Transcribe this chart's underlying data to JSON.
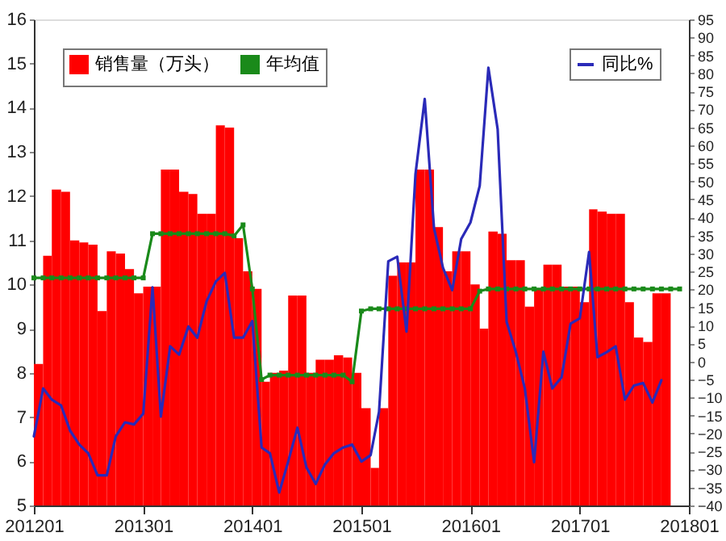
{
  "chart_data": {
    "type": "bar",
    "x": [
      "2012-01",
      "2012-02",
      "2012-03",
      "2012-04",
      "2012-05",
      "2012-06",
      "2012-07",
      "2012-08",
      "2012-09",
      "2012-10",
      "2012-11",
      "2012-12",
      "2013-01",
      "2013-02",
      "2013-03",
      "2013-04",
      "2013-05",
      "2013-06",
      "2013-07",
      "2013-08",
      "2013-09",
      "2013-10",
      "2013-11",
      "2013-12",
      "2014-01",
      "2014-02",
      "2014-03",
      "2014-04",
      "2014-05",
      "2014-06",
      "2014-07",
      "2014-08",
      "2014-09",
      "2014-10",
      "2014-11",
      "2014-12",
      "2015-01",
      "2015-02",
      "2015-03",
      "2015-04",
      "2015-05",
      "2015-06",
      "2015-07",
      "2015-08",
      "2015-09",
      "2015-10",
      "2015-11",
      "2015-12",
      "2016-01",
      "2016-02",
      "2016-03",
      "2016-04",
      "2016-05",
      "2016-06",
      "2016-07",
      "2016-08",
      "2016-09",
      "2016-10",
      "2016-11",
      "2016-12",
      "2017-01",
      "2017-02",
      "2017-03",
      "2017-04",
      "2017-05",
      "2017-06",
      "2017-07",
      "2017-08",
      "2017-09",
      "2017-10",
      "2017-11",
      "2017-12"
    ],
    "xlim": [
      "2012-01",
      "2018-01"
    ],
    "xticks": [
      {
        "value": "2012-01",
        "label": "201201"
      },
      {
        "value": "2013-01",
        "label": "201301"
      },
      {
        "value": "2014-01",
        "label": "201401"
      },
      {
        "value": "2015-01",
        "label": "201501"
      },
      {
        "value": "2016-01",
        "label": "201601"
      },
      {
        "value": "2017-01",
        "label": "201701"
      },
      {
        "value": "2018-01",
        "label": "201801"
      }
    ],
    "ylim": [
      5,
      16
    ],
    "yticks": [
      5,
      6,
      7,
      8,
      9,
      10,
      11,
      12,
      13,
      14,
      15,
      16
    ],
    "y2lim": [
      -40,
      95
    ],
    "y2ticks": [
      -40,
      -35,
      -30,
      -25,
      -20,
      -15,
      -10,
      -5,
      0,
      5,
      10,
      15,
      20,
      25,
      30,
      35,
      40,
      45,
      50,
      55,
      60,
      65,
      70,
      75,
      80,
      85,
      90,
      95
    ],
    "legend": "top left",
    "grid": false,
    "series": [
      {
        "name": "销售量（万头）",
        "color": "#ff0000",
        "values": [
          8.2,
          10.65,
          12.15,
          12.1,
          11.0,
          10.95,
          10.9,
          9.4,
          10.75,
          10.7,
          10.35,
          9.8,
          9.95,
          9.95,
          12.6,
          12.6,
          12.1,
          12.05,
          11.6,
          11.6,
          13.6,
          13.55,
          11.05,
          10.3,
          9.9,
          7.8,
          8.0,
          8.05,
          9.75,
          9.75,
          8.0,
          8.3,
          8.3,
          8.4,
          8.35,
          8.0,
          7.2,
          5.85,
          7.2,
          10.2,
          10.5,
          10.5,
          12.6,
          12.6,
          11.3,
          10.3,
          10.75,
          10.75,
          10.0,
          9.0,
          11.2,
          11.15,
          10.55,
          10.55,
          9.5,
          9.9,
          10.45,
          10.45,
          9.95,
          9.95,
          9.6,
          11.7,
          11.65,
          11.6,
          11.6,
          9.6,
          8.8,
          8.7,
          9.8,
          9.8,
          null,
          null
        ]
      },
      {
        "name": "年均值",
        "type": "line",
        "marker": "square",
        "color": "#1a8a1a",
        "values": [
          10.15,
          10.15,
          10.15,
          10.15,
          10.15,
          10.15,
          10.15,
          10.15,
          10.15,
          10.15,
          10.15,
          10.15,
          10.15,
          11.15,
          11.15,
          11.15,
          11.15,
          11.15,
          11.15,
          11.15,
          11.15,
          11.15,
          11.1,
          11.35,
          9.9,
          7.85,
          7.95,
          7.95,
          7.95,
          7.95,
          7.95,
          7.95,
          7.95,
          7.95,
          7.95,
          7.8,
          9.4,
          9.45,
          9.45,
          9.45,
          9.45,
          9.45,
          9.45,
          9.45,
          9.45,
          9.45,
          9.45,
          9.45,
          9.45,
          9.85,
          9.9,
          9.9,
          9.9,
          9.9,
          9.9,
          9.9,
          9.9,
          9.9,
          9.9,
          9.9,
          9.9,
          9.9,
          9.9,
          9.9,
          9.9,
          9.9,
          9.9,
          9.9,
          9.9,
          9.9,
          9.9,
          9.9
        ]
      },
      {
        "name": "同比%",
        "type": "line",
        "axis": "y2",
        "color": "#2a2ab8",
        "values": [
          -20.8,
          -7.5,
          -10.6,
          -12.2,
          -19.2,
          -23.1,
          -25.5,
          -31.6,
          -31.6,
          -20.8,
          -16.9,
          -17.5,
          -14.5,
          20.6,
          -15.3,
          4.2,
          1.9,
          9.7,
          6.6,
          16.7,
          22.2,
          24.6,
          6.6,
          6.6,
          11.2,
          -23.9,
          -25.5,
          -36.4,
          -27.8,
          -18.4,
          -29.4,
          -34,
          -28.6,
          -25.5,
          -23.9,
          -23.1,
          -27.8,
          -26,
          -14,
          27.8,
          29.1,
          8.3,
          52,
          72.9,
          37,
          26,
          19.8,
          34,
          38.6,
          48.8,
          81.6,
          64.5,
          11,
          2.6,
          -7.5,
          -28,
          2.7,
          -7.5,
          -4.4,
          10.5,
          12,
          30.4,
          1.2,
          2.6,
          4.2,
          -10.6,
          -6.7,
          -6,
          -11.4,
          -5.2,
          null,
          null
        ]
      }
    ]
  }
}
